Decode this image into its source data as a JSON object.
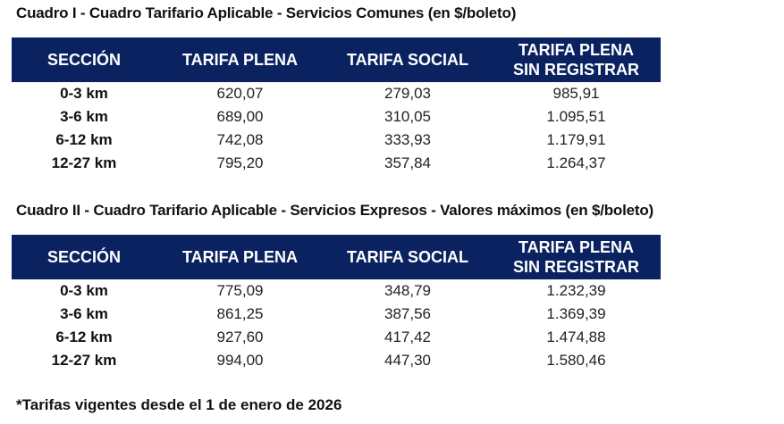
{
  "table1": {
    "title": "Cuadro I - Cuadro Tarifario Aplicable - Servicios Comunes (en $/boleto)",
    "headers": [
      "SECCIÓN",
      "TARIFA PLENA",
      "TARIFA SOCIAL",
      "TARIFA PLENA",
      "SIN REGISTRAR"
    ],
    "rows": [
      [
        "0-3 km",
        "620,07",
        "279,03",
        "985,91"
      ],
      [
        "3-6 km",
        "689,00",
        "310,05",
        "1.095,51"
      ],
      [
        "6-12 km",
        "742,08",
        "333,93",
        "1.179,91"
      ],
      [
        "12-27 km",
        "795,20",
        "357,84",
        "1.264,37"
      ]
    ]
  },
  "table2": {
    "title": "Cuadro II - Cuadro Tarifario Aplicable - Servicios Expresos - Valores máximos (en $/boleto)",
    "headers": [
      "SECCIÓN",
      "TARIFA PLENA",
      "TARIFA SOCIAL",
      "TARIFA PLENA",
      "SIN REGISTRAR"
    ],
    "rows": [
      [
        "0-3 km",
        "775,09",
        "348,79",
        "1.232,39"
      ],
      [
        "3-6 km",
        "861,25",
        "387,56",
        "1.369,39"
      ],
      [
        "6-12 km",
        "927,60",
        "417,42",
        "1.474,88"
      ],
      [
        "12-27 km",
        "994,00",
        "447,30",
        "1.580,46"
      ]
    ]
  },
  "footnote": "*Tarifas vigentes desde el 1 de enero de 2026",
  "colors": {
    "header_bg": "#0b2261",
    "header_text": "#ffffff"
  }
}
